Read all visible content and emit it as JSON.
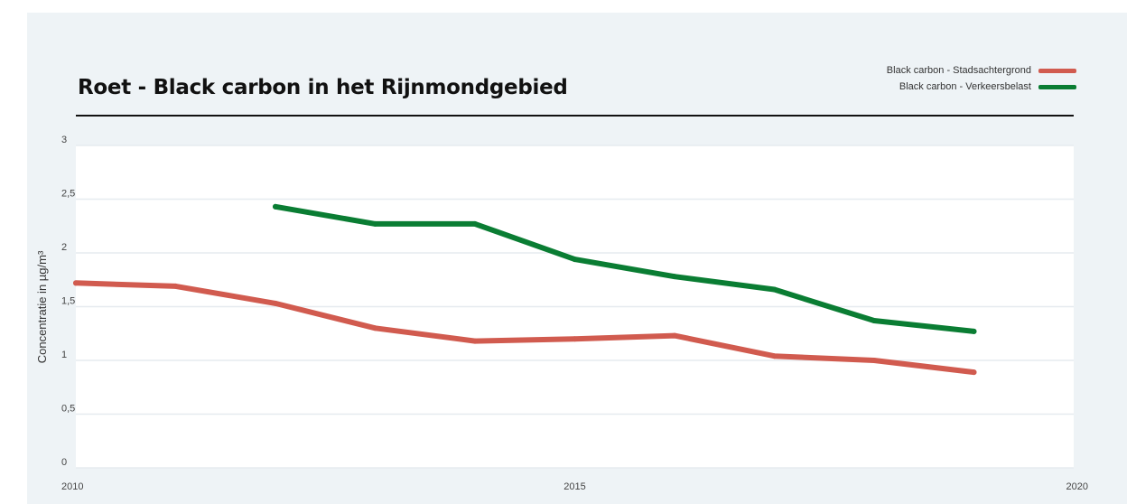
{
  "chart_data": {
    "type": "line",
    "title": "Roet - Black carbon in het Rijnmondgebied",
    "ylabel": "Concentratie in µg/m³",
    "xlabel": "",
    "xlim": [
      2010,
      2020
    ],
    "ylim": [
      0,
      3
    ],
    "x_ticks": [
      "2010",
      "2015",
      "2020"
    ],
    "y_ticks": [
      {
        "value": 0,
        "label": "0"
      },
      {
        "value": 0.5,
        "label": "0,5"
      },
      {
        "value": 1,
        "label": "1"
      },
      {
        "value": 1.5,
        "label": "1,5"
      },
      {
        "value": 2,
        "label": "2"
      },
      {
        "value": 2.5,
        "label": "2,5"
      },
      {
        "value": 3,
        "label": "3"
      }
    ],
    "grid": true,
    "legend_position": "top-right",
    "series": [
      {
        "name": "Black carbon - Stadsachtergrond",
        "color": "#d15b4f",
        "x": [
          2010,
          2011,
          2012,
          2013,
          2014,
          2015,
          2016,
          2017,
          2018,
          2019
        ],
        "y": [
          1.72,
          1.69,
          1.53,
          1.3,
          1.18,
          1.2,
          1.23,
          1.04,
          1.0,
          0.89
        ]
      },
      {
        "name": "Black carbon - Verkeersbelast",
        "color": "#0a7d33",
        "x": [
          2012,
          2013,
          2014,
          2015,
          2016,
          2017,
          2018,
          2019
        ],
        "y": [
          2.43,
          2.27,
          2.27,
          1.94,
          1.78,
          1.66,
          1.37,
          1.27
        ]
      }
    ]
  }
}
